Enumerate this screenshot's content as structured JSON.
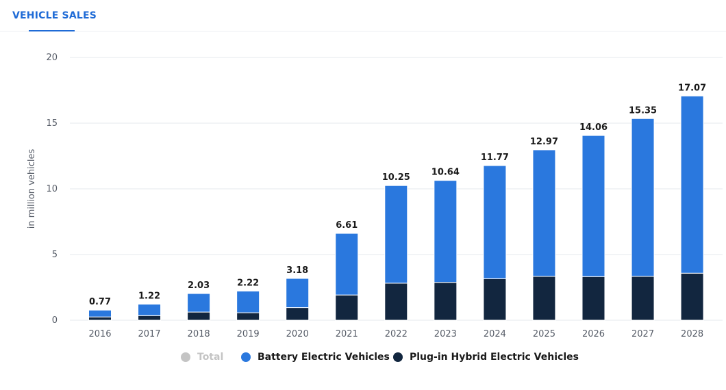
{
  "tab": {
    "label": "VEHICLE SALES"
  },
  "chart_data": {
    "type": "bar",
    "stacked": true,
    "categories": [
      "2016",
      "2017",
      "2018",
      "2019",
      "2020",
      "2021",
      "2022",
      "2023",
      "2024",
      "2025",
      "2026",
      "2027",
      "2028"
    ],
    "series": [
      {
        "name": "Plug-in Hybrid Electric Vehicles",
        "color": "#12263f",
        "values": [
          0.25,
          0.35,
          0.62,
          0.57,
          0.96,
          1.92,
          2.82,
          2.88,
          3.16,
          3.34,
          3.32,
          3.34,
          3.58
        ]
      },
      {
        "name": "Battery Electric Vehicles",
        "color": "#2a78de",
        "values": [
          0.52,
          0.87,
          1.41,
          1.65,
          2.22,
          4.69,
          7.43,
          7.76,
          8.61,
          9.63,
          10.74,
          12.01,
          13.49
        ]
      }
    ],
    "totals": [
      0.77,
      1.22,
      2.03,
      2.22,
      3.18,
      6.61,
      10.25,
      10.64,
      11.77,
      12.97,
      14.06,
      15.35,
      17.07
    ],
    "total_labels": [
      "0.77",
      "1.22",
      "2.03",
      "2.22",
      "3.18",
      "6.61",
      "10.25",
      "10.64",
      "11.77",
      "12.97",
      "14.06",
      "15.35",
      "17.07"
    ],
    "ylabel": "in million vehicles",
    "xlabel": "",
    "ylim": [
      0,
      20
    ],
    "yticks": [
      "0",
      "5",
      "10",
      "15",
      "20"
    ],
    "grid": true,
    "legend_position": "bottom"
  },
  "legend": {
    "items": [
      {
        "label": "Total",
        "color": "#c4c4c4",
        "muted": true
      },
      {
        "label": "Battery Electric Vehicles",
        "color": "#2a78de",
        "muted": false
      },
      {
        "label": "Plug-in Hybrid Electric Vehicles",
        "color": "#12263f",
        "muted": false
      }
    ]
  }
}
